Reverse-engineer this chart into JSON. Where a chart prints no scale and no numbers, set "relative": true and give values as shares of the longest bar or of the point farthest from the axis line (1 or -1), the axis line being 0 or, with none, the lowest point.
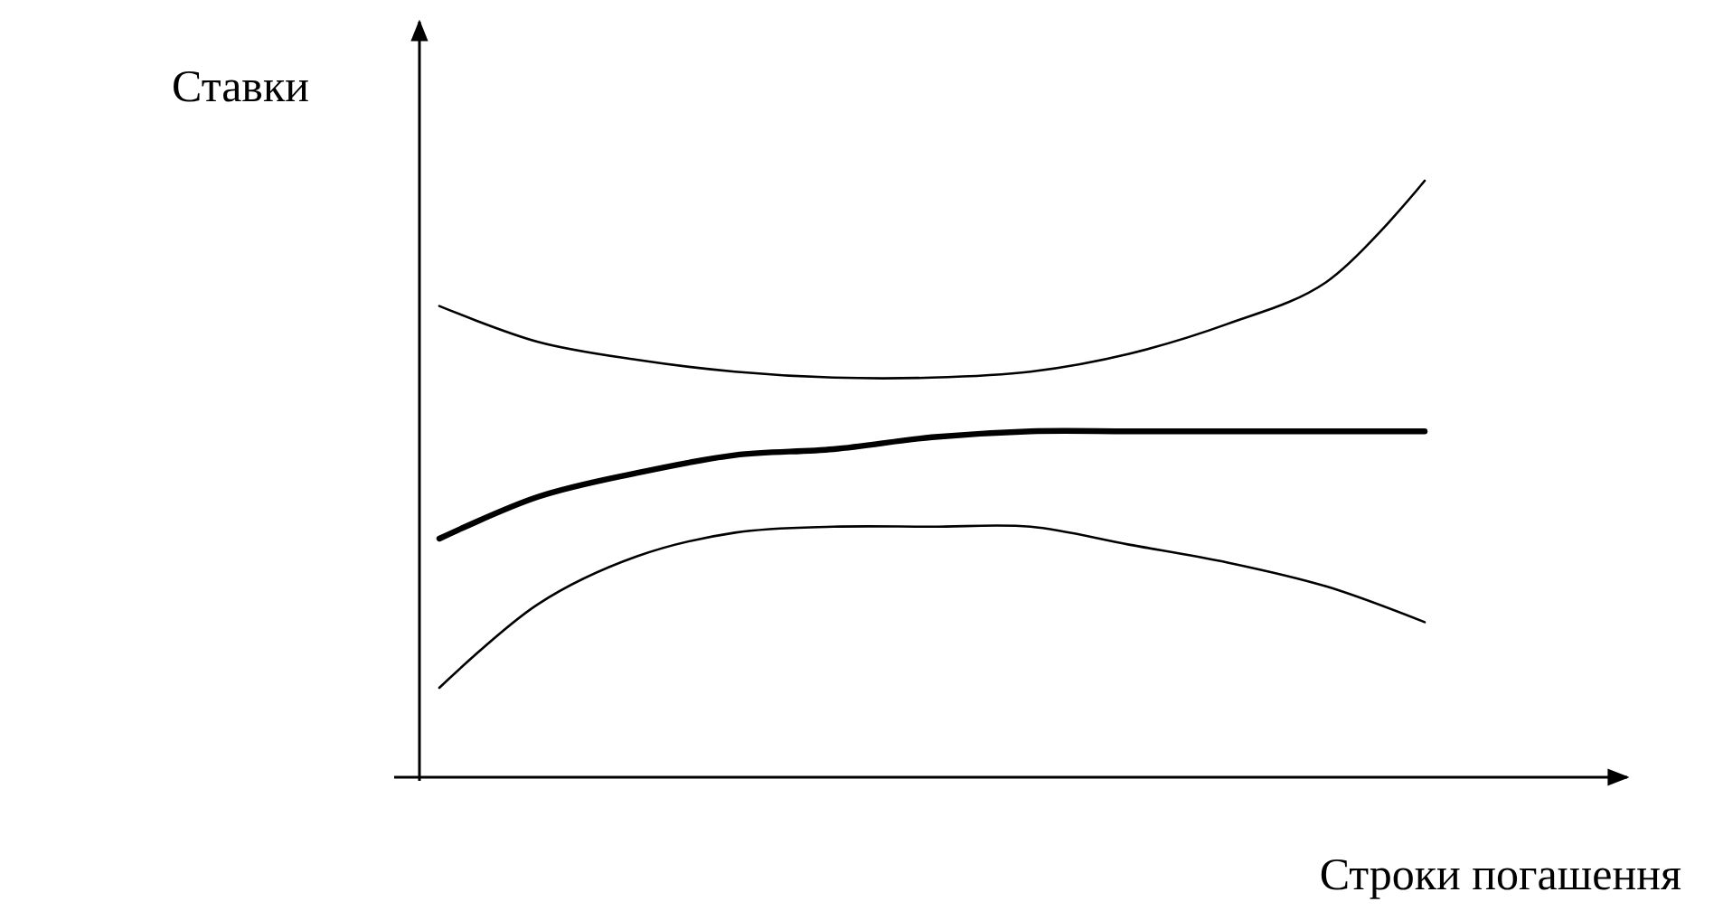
{
  "chart_data": {
    "type": "line",
    "relative": true,
    "xlabel": "Строки погашення",
    "ylabel": "Ставки",
    "categories": [
      null,
      null,
      null,
      null,
      null,
      null,
      null,
      null,
      null,
      null,
      null
    ],
    "series": [
      {
        "color": "#000000",
        "values": [
          0.79,
          0.73,
          0.7,
          0.68,
          0.67,
          0.67,
          0.68,
          0.71,
          0.76,
          0.83,
          1
        ]
      },
      {
        "color": "#000000",
        "values": [
          0.4,
          0.47,
          0.51,
          0.54,
          0.55,
          0.57,
          0.58,
          0.58,
          0.58,
          0.58,
          0.58
        ]
      },
      {
        "color": "#000000",
        "values": [
          0.15,
          0.29,
          0.37,
          0.41,
          0.42,
          0.42,
          0.42,
          0.39,
          0.36,
          0.32,
          0.26
        ]
      }
    ],
    "marker": "none",
    "line_style": "solid"
  }
}
